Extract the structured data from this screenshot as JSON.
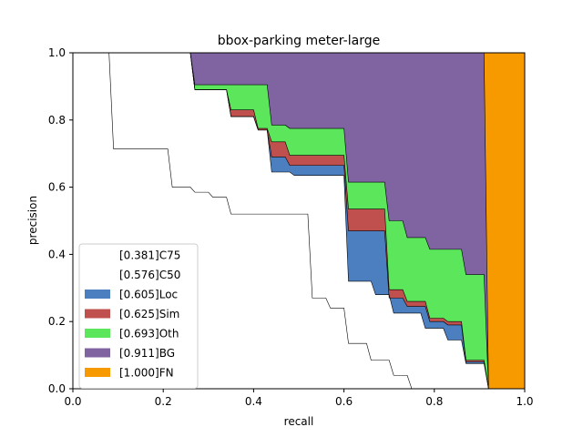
{
  "chart_data": {
    "type": "area",
    "title": "bbox-parking meter-large",
    "xlabel": "recall",
    "ylabel": "precision",
    "xlim": [
      0.0,
      1.0
    ],
    "ylim": [
      0.0,
      1.0
    ],
    "xticks": [
      "0.0",
      "0.2",
      "0.4",
      "0.6",
      "0.8",
      "1.0"
    ],
    "yticks": [
      "0.0",
      "0.2",
      "0.4",
      "0.6",
      "0.8",
      "1.0"
    ],
    "grid": false,
    "legend_position": "lower-left",
    "series": [
      {
        "name": "[0.381]C75",
        "color": "#ffffff",
        "x": [
          0.0,
          0.08,
          0.09,
          0.21,
          0.22,
          0.26,
          0.27,
          0.3,
          0.31,
          0.34,
          0.35,
          0.52,
          0.53,
          0.56,
          0.57,
          0.6,
          0.61,
          0.65,
          0.66,
          0.7,
          0.71,
          0.74,
          0.75,
          1.0
        ],
        "y": [
          1.0,
          1.0,
          0.714,
          0.714,
          0.6,
          0.6,
          0.585,
          0.585,
          0.57,
          0.57,
          0.52,
          0.52,
          0.27,
          0.27,
          0.24,
          0.24,
          0.135,
          0.135,
          0.085,
          0.085,
          0.04,
          0.04,
          0.0,
          0.0
        ]
      },
      {
        "name": "[0.576]C50",
        "color": "#ffffff",
        "x": [
          0.0,
          0.26,
          0.27,
          0.34,
          0.35,
          0.4,
          0.41,
          0.43,
          0.44,
          0.48,
          0.49,
          0.6,
          0.61,
          0.66,
          0.67,
          0.7,
          0.71,
          0.77,
          0.78,
          0.82,
          0.83,
          0.86,
          0.87,
          0.91,
          0.92,
          1.0
        ],
        "y": [
          1.0,
          1.0,
          0.89,
          0.89,
          0.81,
          0.81,
          0.77,
          0.77,
          0.645,
          0.645,
          0.635,
          0.635,
          0.32,
          0.32,
          0.28,
          0.28,
          0.225,
          0.225,
          0.18,
          0.18,
          0.145,
          0.145,
          0.075,
          0.075,
          0.0,
          0.0
        ]
      },
      {
        "name": "[0.605]Loc",
        "color": "#4c7fc0",
        "x": [
          0.0,
          0.26,
          0.27,
          0.34,
          0.35,
          0.4,
          0.41,
          0.43,
          0.44,
          0.47,
          0.48,
          0.6,
          0.61,
          0.69,
          0.7,
          0.73,
          0.74,
          0.78,
          0.79,
          0.82,
          0.83,
          0.86,
          0.87,
          0.91,
          0.92,
          1.0
        ],
        "y": [
          1.0,
          1.0,
          0.89,
          0.89,
          0.81,
          0.81,
          0.77,
          0.77,
          0.69,
          0.69,
          0.665,
          0.665,
          0.47,
          0.47,
          0.27,
          0.27,
          0.245,
          0.245,
          0.2,
          0.2,
          0.19,
          0.19,
          0.08,
          0.08,
          0.0,
          0.0
        ]
      },
      {
        "name": "[0.625]Sim",
        "color": "#c0504d",
        "x": [
          0.0,
          0.26,
          0.27,
          0.34,
          0.35,
          0.4,
          0.41,
          0.43,
          0.44,
          0.47,
          0.48,
          0.6,
          0.61,
          0.69,
          0.7,
          0.73,
          0.74,
          0.78,
          0.79,
          0.82,
          0.83,
          0.86,
          0.87,
          0.91,
          0.92,
          1.0
        ],
        "y": [
          1.0,
          1.0,
          0.89,
          0.89,
          0.83,
          0.83,
          0.775,
          0.775,
          0.735,
          0.735,
          0.695,
          0.695,
          0.535,
          0.535,
          0.295,
          0.295,
          0.26,
          0.26,
          0.21,
          0.21,
          0.2,
          0.2,
          0.085,
          0.085,
          0.0,
          0.0
        ]
      },
      {
        "name": "[0.693]Oth",
        "color": "#5ce65c",
        "x": [
          0.0,
          0.26,
          0.27,
          0.34,
          0.35,
          0.43,
          0.44,
          0.47,
          0.48,
          0.6,
          0.61,
          0.69,
          0.7,
          0.73,
          0.74,
          0.78,
          0.79,
          0.86,
          0.87,
          0.91,
          0.92,
          1.0
        ],
        "y": [
          1.0,
          1.0,
          0.905,
          0.905,
          0.905,
          0.905,
          0.785,
          0.785,
          0.775,
          0.775,
          0.615,
          0.615,
          0.5,
          0.5,
          0.45,
          0.45,
          0.415,
          0.415,
          0.34,
          0.34,
          0.0,
          0.0
        ]
      },
      {
        "name": "[0.911]BG",
        "color": "#8064a2",
        "x": [
          0.0,
          0.91,
          0.92,
          1.0
        ],
        "y": [
          1.0,
          1.0,
          0.0,
          0.0
        ]
      },
      {
        "name": "[1.000]FN",
        "color": "#f79a00",
        "x": [
          0.0,
          1.0
        ],
        "y": [
          1.0,
          1.0
        ]
      }
    ]
  }
}
